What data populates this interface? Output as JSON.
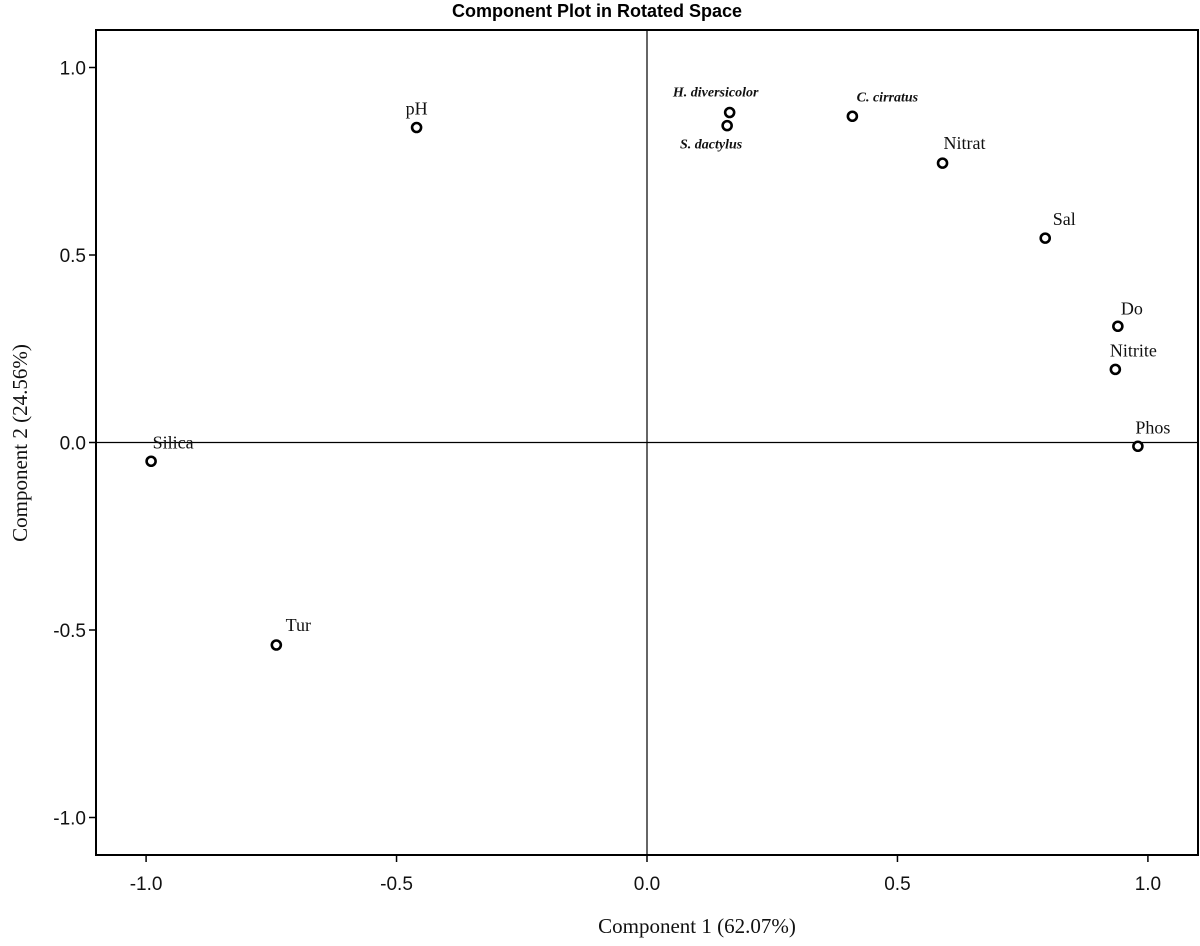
{
  "chart_data": {
    "type": "scatter",
    "title": "Component Plot in Rotated Space",
    "xlabel": "Component 1",
    "xlabel_pct": "(62.07%)",
    "ylabel": "Component 2",
    "ylabel_pct": "(24.56%)",
    "xlim": [
      -1.1,
      1.1
    ],
    "ylim": [
      -1.1,
      1.1
    ],
    "xticks": [
      -1.0,
      -0.5,
      0.0,
      0.5,
      1.0
    ],
    "yticks": [
      -1.0,
      -0.5,
      0.0,
      0.5,
      1.0
    ],
    "xtick_labels": [
      "-1.0",
      "-0.5",
      "0.0",
      "0.5",
      "1.0"
    ],
    "ytick_labels": [
      "-1.0",
      "-0.5",
      "0.0",
      "0.5",
      "1.0"
    ],
    "reference_lines": {
      "x": 0,
      "y": 0
    },
    "grid": false,
    "points": [
      {
        "label": "pH",
        "x": -0.46,
        "y": 0.84,
        "style": "normal"
      },
      {
        "label": "H. diversicolor",
        "x": 0.165,
        "y": 0.88,
        "style": "species"
      },
      {
        "label": "S. dactylus",
        "x": 0.16,
        "y": 0.845,
        "style": "species"
      },
      {
        "label": "C. cirratus",
        "x": 0.41,
        "y": 0.87,
        "style": "species"
      },
      {
        "label": "Nitrat",
        "x": 0.59,
        "y": 0.745,
        "style": "normal"
      },
      {
        "label": "Sal",
        "x": 0.795,
        "y": 0.545,
        "style": "normal"
      },
      {
        "label": "Do",
        "x": 0.94,
        "y": 0.31,
        "style": "normal"
      },
      {
        "label": "Nitrite",
        "x": 0.935,
        "y": 0.195,
        "style": "normal"
      },
      {
        "label": "Phos",
        "x": 0.98,
        "y": -0.01,
        "style": "normal"
      },
      {
        "label": "Silica",
        "x": -0.99,
        "y": -0.05,
        "style": "normal"
      },
      {
        "label": "Tur",
        "x": -0.74,
        "y": -0.54,
        "style": "normal"
      }
    ]
  }
}
